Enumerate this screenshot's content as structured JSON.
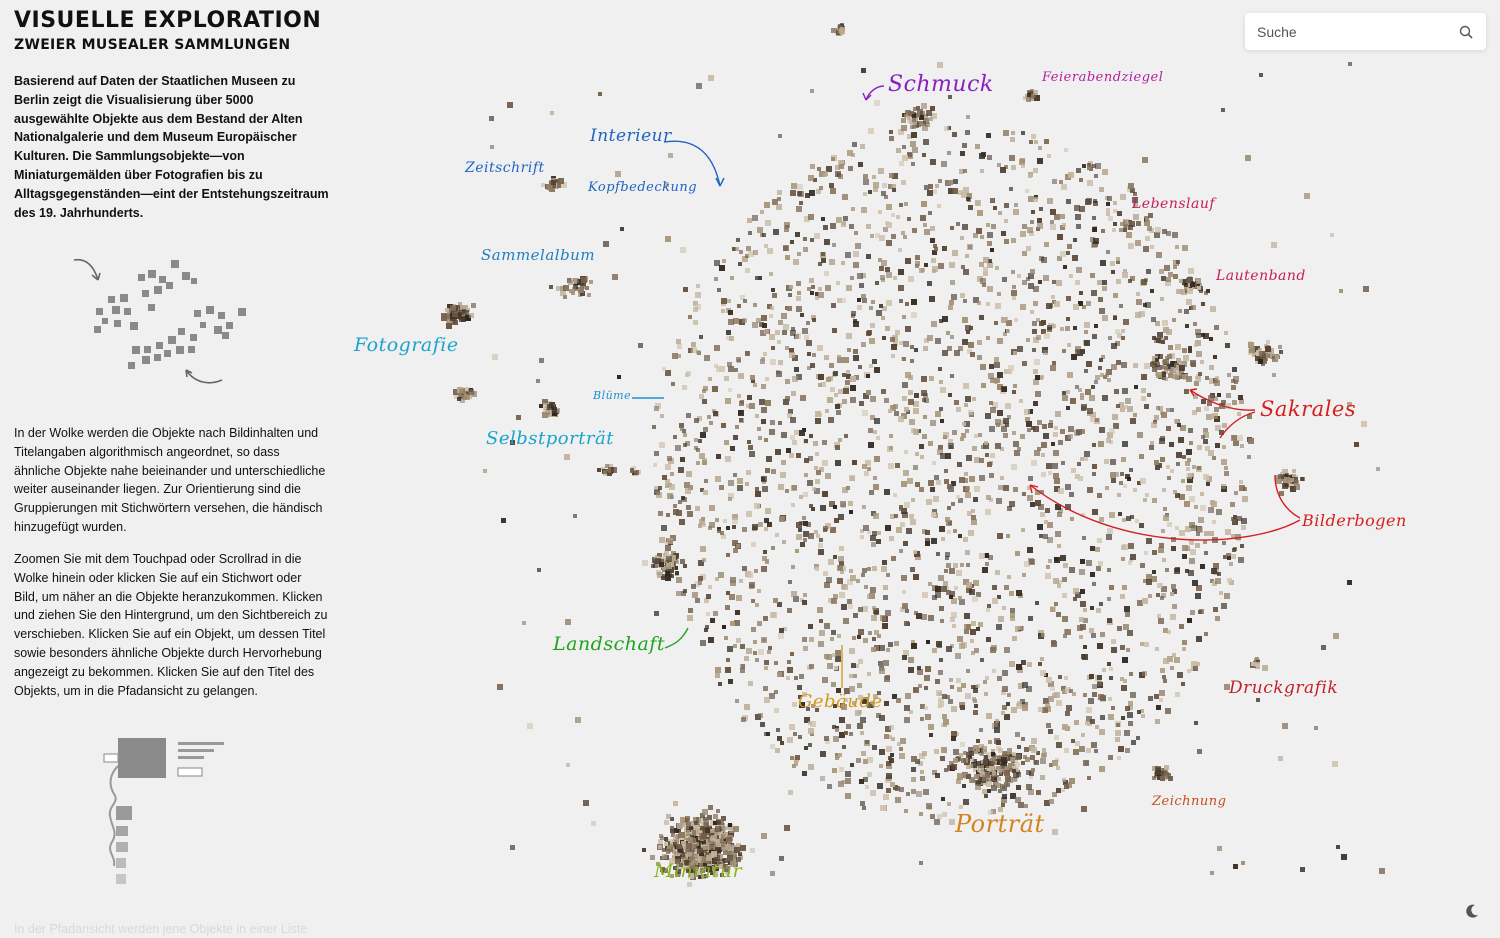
{
  "sidebar": {
    "title": "VISUELLE EXPLORATION",
    "subtitle": "ZWEIER MUSEALER SAMMLUNGEN",
    "intro": "Basierend auf Daten der Staatlichen Museen zu Berlin zeigt die Visualisierung über 5000 ausgewählte Objekte aus dem Bestand der Alten Nationalgalerie und dem Museum Europäischer Kulturen. Die Sammlungsobjekte—von Miniaturgemälden über Fotografien bis zu Alltagsgegenständen—eint der Entstehungszeitraum des 19. Jahrhunderts.",
    "paragraph1": "In der Wolke werden die Objekte nach Bildinhalten und Titelangaben algorithmisch angeordnet, so dass ähnliche Objekte nahe beieinander und unterschiedliche weiter auseinander liegen. Zur Orientierung sind die Gruppierungen mit Stichwörtern versehen, die händisch hinzugefügt wurden.",
    "paragraph2": "Zoomen Sie mit dem Touchpad oder Scrollrad in die Wolke hinein oder klicken Sie auf ein Stichwort oder Bild, um näher an die Objekte heranzukommen. Klicken und ziehen Sie den Hintergrund, um den Sichtbereich zu verschieben. Klicken Sie auf ein Objekt, um dessen Titel sowie besonders ähnliche Objekte durch Hervorhebung angezeigt zu bekommen. Klicken Sie auf den Titel des Objekts, um in die Pfadansicht zu gelangen.",
    "paragraph3": "In der Pfadansicht werden jene Objekte in einer Liste"
  },
  "search": {
    "placeholder": "Suche",
    "value": ""
  },
  "icons": {
    "search": "search-icon",
    "theme": "moon-icon"
  },
  "labels": {
    "schmuck": {
      "text": "Schmuck",
      "color": "#8a1fc2"
    },
    "feierabendziegel": {
      "text": "Feierabendziegel",
      "color": "#b51f9e"
    },
    "interieur": {
      "text": "Interieur",
      "color": "#1f63c4"
    },
    "kopfbedeckung": {
      "text": "Kopfbedeckung",
      "color": "#1f63c4"
    },
    "zeitschrift": {
      "text": "Zeitschrift",
      "color": "#1f63c4"
    },
    "lebenslauf": {
      "text": "Lebenslauf",
      "color": "#c41f5a"
    },
    "lautenband": {
      "text": "Lautenband",
      "color": "#c41f5a"
    },
    "sammelalbum": {
      "text": "Sammelalbum",
      "color": "#1f7fc4"
    },
    "fotografie": {
      "text": "Fotografie",
      "color": "#1aa3cc"
    },
    "bluume": {
      "text": "Blüme",
      "color": "#1f8fd4"
    },
    "selbstportraet": {
      "text": "Selbstporträt",
      "color": "#1aa3cc"
    },
    "sakrales": {
      "text": "Sakrales",
      "color": "#d41f1f"
    },
    "bilderbogen": {
      "text": "Bilderbogen",
      "color": "#d41f1f"
    },
    "landschaft": {
      "text": "Landschaft",
      "color": "#1fa31f"
    },
    "gebaeude": {
      "text": "Gebäude",
      "color": "#d49a1f"
    },
    "druckgrafik": {
      "text": "Druckgrafik",
      "color": "#c41f2a"
    },
    "zeichnung": {
      "text": "Zeichnung",
      "color": "#c4501f"
    },
    "portraet": {
      "text": "Porträt",
      "color": "#d4831f"
    },
    "miniatur": {
      "text": "Miniatur",
      "color": "#8ab31f"
    }
  }
}
